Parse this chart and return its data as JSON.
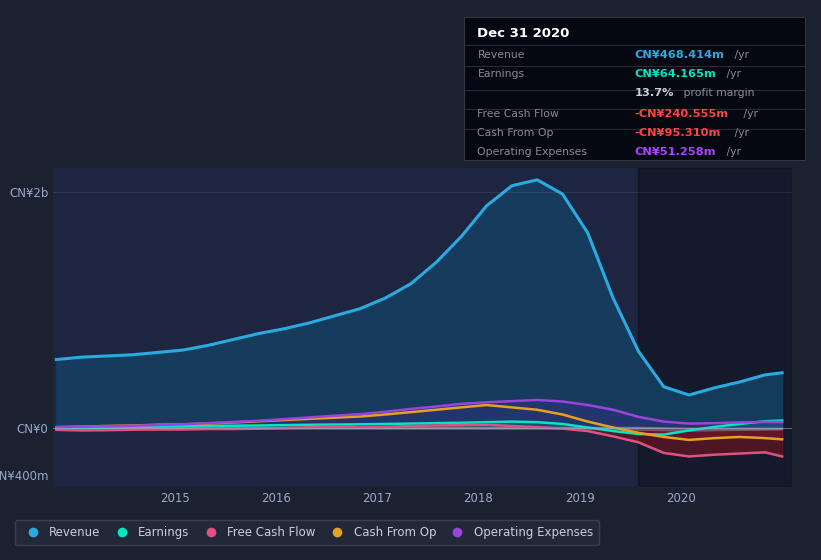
{
  "bg_color": "#1c2130",
  "plot_bg": "#1e2540",
  "revenue_color": "#29abe2",
  "revenue_fill_color": "#1a3a5c",
  "earnings_color": "#00e5c4",
  "fcf_color": "#e05080",
  "cashfromop_color": "#e8a020",
  "opex_color": "#9944dd",
  "grey_line_color": "#8899aa",
  "dark_red_fill": "#6b1520",
  "ylim": [
    -500,
    2200
  ],
  "yticks": [
    -400,
    0,
    2000
  ],
  "ytick_labels": [
    "-CN¥400m",
    "CN¥0",
    "CN¥2b"
  ],
  "xlim": [
    2013.8,
    2021.1
  ],
  "xticks": [
    2015,
    2016,
    2017,
    2018,
    2019,
    2020
  ],
  "shaded_region_start": 2019.58,
  "legend_items": [
    {
      "label": "Revenue",
      "color": "#29abe2"
    },
    {
      "label": "Earnings",
      "color": "#00e5c4"
    },
    {
      "label": "Free Cash Flow",
      "color": "#e05080"
    },
    {
      "label": "Cash From Op",
      "color": "#e8a020"
    },
    {
      "label": "Operating Expenses",
      "color": "#9944dd"
    }
  ],
  "time": [
    2013.83,
    2014.08,
    2014.33,
    2014.58,
    2014.83,
    2015.08,
    2015.33,
    2015.58,
    2015.83,
    2016.08,
    2016.33,
    2016.58,
    2016.83,
    2017.08,
    2017.33,
    2017.58,
    2017.83,
    2018.08,
    2018.33,
    2018.58,
    2018.83,
    2019.08,
    2019.33,
    2019.58,
    2019.83,
    2020.08,
    2020.33,
    2020.58,
    2020.83,
    2021.0
  ],
  "revenue": [
    580,
    600,
    610,
    620,
    640,
    660,
    700,
    750,
    800,
    840,
    890,
    950,
    1010,
    1100,
    1220,
    1400,
    1620,
    1880,
    2050,
    2100,
    1980,
    1650,
    1100,
    650,
    350,
    280,
    340,
    390,
    450,
    468
  ],
  "earnings": [
    -5,
    0,
    5,
    8,
    12,
    15,
    18,
    20,
    22,
    25,
    28,
    30,
    32,
    35,
    38,
    42,
    45,
    50,
    55,
    50,
    35,
    5,
    -25,
    -50,
    -55,
    -20,
    10,
    35,
    58,
    64
  ],
  "fcf": [
    -15,
    -20,
    -18,
    -14,
    -12,
    -12,
    -8,
    -8,
    -5,
    0,
    8,
    12,
    5,
    10,
    18,
    22,
    25,
    28,
    18,
    8,
    -5,
    -25,
    -70,
    -120,
    -210,
    -240,
    -225,
    -215,
    -205,
    -240
  ],
  "cashfromop": [
    8,
    12,
    18,
    22,
    28,
    32,
    38,
    48,
    58,
    68,
    78,
    88,
    98,
    115,
    135,
    155,
    175,
    195,
    175,
    155,
    115,
    55,
    5,
    -40,
    -75,
    -100,
    -85,
    -75,
    -85,
    -95
  ],
  "opex": [
    8,
    12,
    15,
    20,
    26,
    32,
    42,
    52,
    62,
    76,
    90,
    105,
    118,
    138,
    162,
    182,
    205,
    218,
    228,
    238,
    225,
    195,
    155,
    95,
    55,
    38,
    42,
    48,
    52,
    51
  ],
  "grey1": [
    2,
    2,
    2,
    2,
    2,
    2,
    2,
    2,
    2,
    2,
    2,
    2,
    2,
    2,
    2,
    2,
    2,
    2,
    2,
    2,
    2,
    2,
    2,
    2,
    -2,
    -5,
    -5,
    -5,
    -5,
    -5
  ],
  "grey2": [
    -8,
    -8,
    -8,
    -8,
    -8,
    -8,
    -8,
    -8,
    -8,
    -8,
    -8,
    -8,
    -8,
    -8,
    -8,
    -8,
    -8,
    -8,
    -8,
    -8,
    -8,
    -8,
    -10,
    -15,
    -20,
    -25,
    -20,
    -18,
    -15,
    -12
  ]
}
